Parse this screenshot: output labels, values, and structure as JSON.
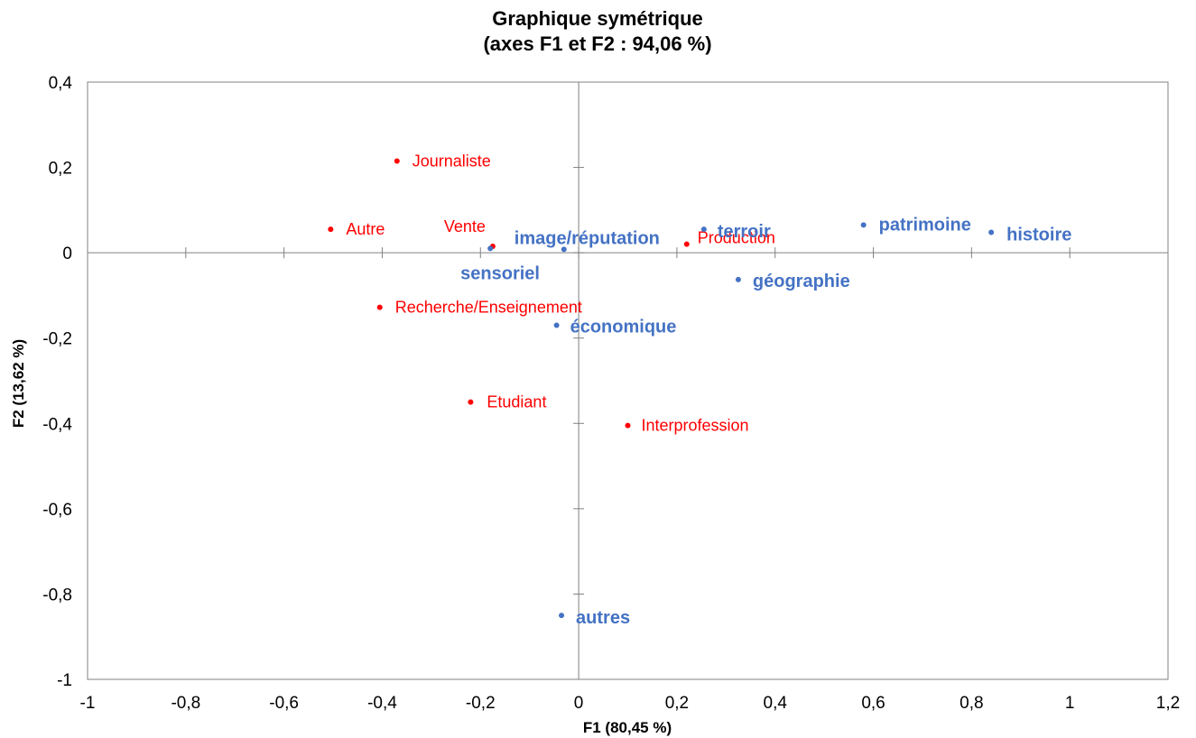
{
  "chart_data": {
    "type": "scatter",
    "title": "Graphique symétrique",
    "subtitle": "(axes F1 et F2 : 94,06 %)",
    "xlabel": "F1 (80,45 %)",
    "ylabel": "F2 (13,62 %)",
    "xlim": [
      -1,
      1.2
    ],
    "ylim": [
      -1,
      0.4
    ],
    "x_ticks": [
      -1,
      -0.8,
      -0.6,
      -0.4,
      -0.2,
      0,
      0.2,
      0.4,
      0.6,
      0.8,
      1,
      1.2
    ],
    "x_tick_labels": [
      "-1",
      "-0,8",
      "-0,6",
      "-0,4",
      "-0,2",
      "0",
      "0,2",
      "0,4",
      "0,6",
      "0,8",
      "1",
      "1,2"
    ],
    "y_ticks": [
      -1,
      -0.8,
      -0.6,
      -0.4,
      -0.2,
      0,
      0.2,
      0.4
    ],
    "y_tick_labels": [
      "-1",
      "-0,8",
      "-0,6",
      "-0,4",
      "-0,2",
      "0",
      "0,2",
      "0,4"
    ],
    "grid": false,
    "colors": {
      "rows": "#ff0000",
      "columns": "#4472c4",
      "axis": "#808080"
    },
    "series": [
      {
        "color": "#ff0000",
        "points": [
          {
            "label": "Journaliste",
            "x": -0.37,
            "y": 0.215
          },
          {
            "label": "Autre",
            "x": -0.505,
            "y": 0.055
          },
          {
            "label": "Vente",
            "x": -0.175,
            "y": 0.015
          },
          {
            "label": "Production",
            "x": 0.22,
            "y": 0.02
          },
          {
            "label": "Recherche/Enseignement",
            "x": -0.405,
            "y": -0.128
          },
          {
            "label": "Etudiant",
            "x": -0.22,
            "y": -0.35
          },
          {
            "label": "Interprofession",
            "x": 0.1,
            "y": -0.405
          }
        ]
      },
      {
        "color": "#4472c4",
        "points": [
          {
            "label": "terroir",
            "x": 0.255,
            "y": 0.055
          },
          {
            "label": "patrimoine",
            "x": 0.58,
            "y": 0.065
          },
          {
            "label": "histoire",
            "x": 0.84,
            "y": 0.048
          },
          {
            "label": "image/réputation",
            "x": -0.03,
            "y": 0.008
          },
          {
            "label": "sensoriel",
            "x": -0.18,
            "y": 0.01
          },
          {
            "label": "géographie",
            "x": 0.325,
            "y": -0.063
          },
          {
            "label": "économique",
            "x": -0.045,
            "y": -0.17
          },
          {
            "label": "autres",
            "x": -0.035,
            "y": -0.85
          }
        ]
      }
    ]
  }
}
